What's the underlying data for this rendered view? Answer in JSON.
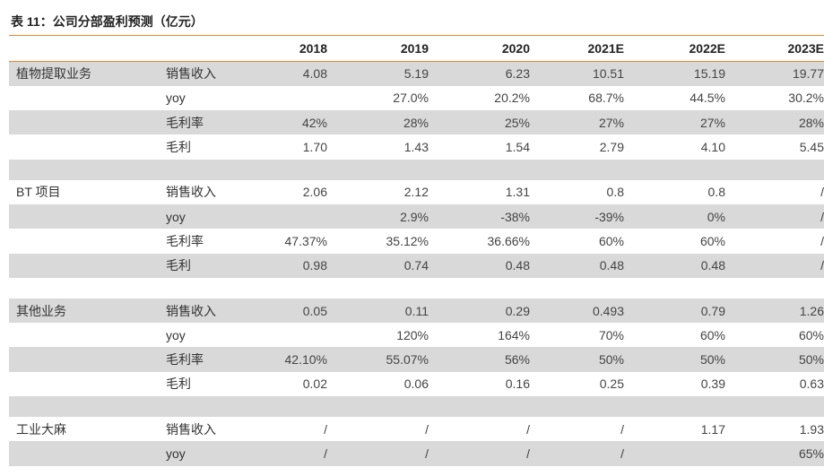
{
  "title": "表 11：公司分部盈利预测（亿元）",
  "headers": [
    "",
    "",
    "2018",
    "2019",
    "2020",
    "2021E",
    "2022E",
    "2023E"
  ],
  "rows": [
    {
      "segment": "植物提取业务",
      "metric": "销售收入",
      "values": [
        "4.08",
        "5.19",
        "6.23",
        "10.51",
        "15.19",
        "19.77"
      ],
      "shade": true
    },
    {
      "segment": "",
      "metric": "yoy",
      "values": [
        "",
        "27.0%",
        "20.2%",
        "68.7%",
        "44.5%",
        "30.2%"
      ],
      "shade": false
    },
    {
      "segment": "",
      "metric": "毛利率",
      "values": [
        "42%",
        "28%",
        "25%",
        "27%",
        "27%",
        "28%"
      ],
      "shade": true
    },
    {
      "segment": "",
      "metric": "毛利",
      "values": [
        "1.70",
        "1.43",
        "1.54",
        "2.79",
        "4.10",
        "5.45"
      ],
      "shade": false
    },
    {
      "gap": true,
      "shade": true
    },
    {
      "segment": "BT 项目",
      "metric": "销售收入",
      "values": [
        "2.06",
        "2.12",
        "1.31",
        "0.8",
        "0.8",
        "/"
      ],
      "shade": false
    },
    {
      "segment": "",
      "metric": "yoy",
      "values": [
        "",
        "2.9%",
        "-38%",
        "-39%",
        "0%",
        "/"
      ],
      "shade": true
    },
    {
      "segment": "",
      "metric": "毛利率",
      "values": [
        "47.37%",
        "35.12%",
        "36.66%",
        "60%",
        "60%",
        "/"
      ],
      "shade": false
    },
    {
      "segment": "",
      "metric": "毛利",
      "values": [
        "0.98",
        "0.74",
        "0.48",
        "0.48",
        "0.48",
        "/"
      ],
      "shade": true
    },
    {
      "gap": true,
      "shade": false
    },
    {
      "segment": "其他业务",
      "metric": "销售收入",
      "values": [
        "0.05",
        "0.11",
        "0.29",
        "0.493",
        "0.79",
        "1.26"
      ],
      "shade": true
    },
    {
      "segment": "",
      "metric": "yoy",
      "values": [
        "",
        "120%",
        "164%",
        "70%",
        "60%",
        "60%"
      ],
      "shade": false
    },
    {
      "segment": "",
      "metric": "毛利率",
      "values": [
        "42.10%",
        "55.07%",
        "56%",
        "50%",
        "50%",
        "50%"
      ],
      "shade": true
    },
    {
      "segment": "",
      "metric": "毛利",
      "values": [
        "0.02",
        "0.06",
        "0.16",
        "0.25",
        "0.39",
        "0.63"
      ],
      "shade": false
    },
    {
      "gap": true,
      "shade": true
    },
    {
      "segment": "工业大麻",
      "metric": "销售收入",
      "values": [
        "/",
        "/",
        "/",
        "/",
        "1.17",
        "1.93"
      ],
      "shade": false
    },
    {
      "segment": "",
      "metric": "yoy",
      "values": [
        "/",
        "/",
        "/",
        "/",
        "",
        "65%"
      ],
      "shade": true
    }
  ]
}
